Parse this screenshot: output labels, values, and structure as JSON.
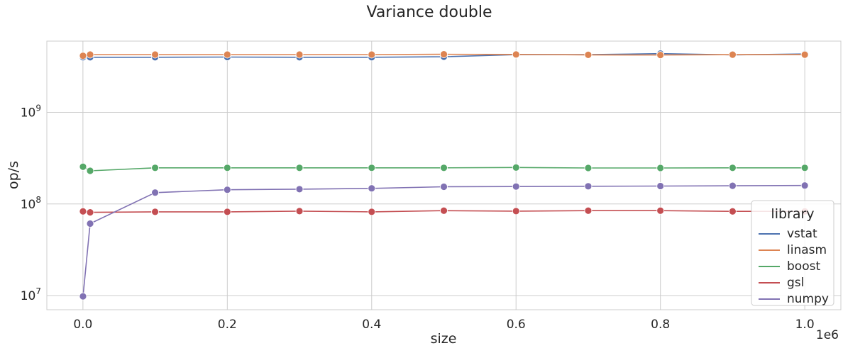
{
  "chart_data": {
    "type": "line",
    "title": "Variance double",
    "xlabel": "size",
    "ylabel": "op/s",
    "x_offset_label": "1e6",
    "xlim": [
      -50000,
      1050000
    ],
    "ylim": [
      7000000,
      6000000000
    ],
    "yscale": "log",
    "grid": true,
    "x_ticks": [
      0,
      200000,
      400000,
      600000,
      800000,
      1000000
    ],
    "x_tick_labels": [
      "0.0",
      "0.2",
      "0.4",
      "0.6",
      "0.8",
      "1.0"
    ],
    "y_ticks": [
      10000000,
      100000000,
      1000000000
    ],
    "y_tick_labels": [
      {
        "base": "10",
        "exp": "7"
      },
      {
        "base": "10",
        "exp": "8"
      },
      {
        "base": "10",
        "exp": "9"
      }
    ],
    "legend": {
      "title": "library",
      "placement": "lower-right"
    },
    "x": [
      100,
      10000,
      100000,
      200000,
      300000,
      400000,
      500000,
      600000,
      700000,
      800000,
      900000,
      1000000
    ],
    "series": [
      {
        "name": "vstat",
        "color": "#4c72b0",
        "values": [
          4000000000,
          4000000000,
          4000000000,
          4020000000,
          4000000000,
          4000000000,
          4050000000,
          4270000000,
          4270000000,
          4380000000,
          4250000000,
          4340000000
        ]
      },
      {
        "name": "linasm",
        "color": "#dd8452",
        "values": [
          4150000000,
          4280000000,
          4280000000,
          4280000000,
          4280000000,
          4280000000,
          4310000000,
          4290000000,
          4250000000,
          4230000000,
          4270000000,
          4270000000
        ]
      },
      {
        "name": "boost",
        "color": "#55a868",
        "values": [
          255000000,
          230000000,
          248000000,
          248000000,
          248000000,
          248000000,
          248000000,
          250000000,
          247000000,
          247000000,
          248000000,
          248000000
        ]
      },
      {
        "name": "gsl",
        "color": "#c44e52",
        "values": [
          83000000,
          81000000,
          82000000,
          82000000,
          83500000,
          82000000,
          84500000,
          83500000,
          84500000,
          84500000,
          83000000,
          83000000
        ]
      },
      {
        "name": "numpy",
        "color": "#8172b3",
        "values": [
          9800000,
          61000000,
          133000000,
          143000000,
          145000000,
          148000000,
          154000000,
          155000000,
          156000000,
          157000000,
          158000000,
          159000000
        ]
      }
    ]
  }
}
